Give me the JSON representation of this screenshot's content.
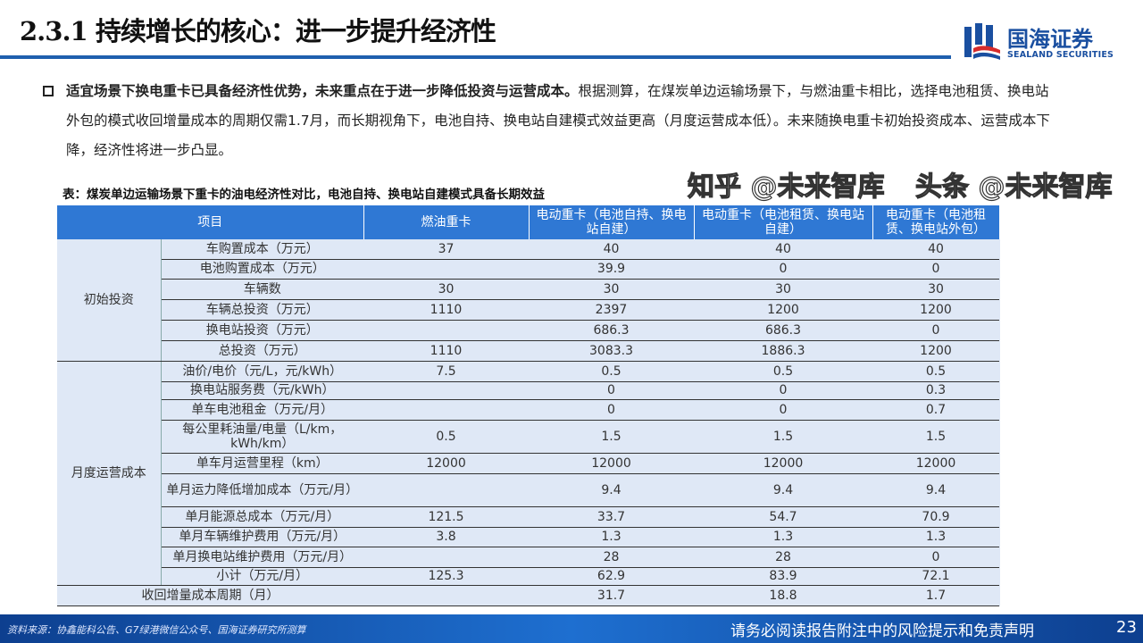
{
  "header": {
    "title": "2.3.1 持续增长的核心：进一步提升经济性",
    "logo_cn": "国海证券",
    "logo_en": "SEALAND SECURITIES"
  },
  "bullet": {
    "bold": "适宜场景下换电重卡已具备经济性优势，未来重点在于进一步降低投资与运营成本。",
    "text": "根据测算，在煤炭单边运输场景下，与燃油重卡相比，选择电池租赁、换电站外包的模式收回增量成本的周期仅需1.7月，而长期视角下，电池自持、换电站自建模式效益更高（月度运营成本低）。未来随换电重卡初始投资成本、运营成本下降，经济性将进一步凸显。"
  },
  "table": {
    "caption": "表：煤炭单边运输场景下重卡的油电经济性对比，电池自持、换电站自建模式具备长期效益",
    "headers": [
      "项目",
      "燃油重卡",
      "电动重卡（电池自持、换电站自建）",
      "电动重卡（电池租赁、换电站自建）",
      "电动重卡（电池租赁、换电站外包）"
    ],
    "groups": [
      {
        "name": "初始投资",
        "rows": [
          {
            "item": "车购置成本（万元）",
            "v": [
              "37",
              "40",
              "40",
              "40"
            ]
          },
          {
            "item": "电池购置成本（万元）",
            "v": [
              "",
              "39.9",
              "0",
              "0"
            ]
          },
          {
            "item": "车辆数",
            "v": [
              "30",
              "30",
              "30",
              "30"
            ]
          },
          {
            "item": "车辆总投资（万元）",
            "v": [
              "1110",
              "2397",
              "1200",
              "1200"
            ]
          },
          {
            "item": "换电站投资（万元）",
            "v": [
              "",
              "686.3",
              "686.3",
              "0"
            ]
          },
          {
            "item": "总投资（万元）",
            "v": [
              "1110",
              "3083.3",
              "1886.3",
              "1200"
            ]
          }
        ]
      },
      {
        "name": "月度运营成本",
        "rows": [
          {
            "item": "油价/电价（元/L，元/kWh）",
            "v": [
              "7.5",
              "0.5",
              "0.5",
              "0.5"
            ]
          },
          {
            "item": "换电站服务费（元/kWh）",
            "v": [
              "",
              "0",
              "0",
              "0.3"
            ]
          },
          {
            "item": "单车电池租金（万元/月）",
            "v": [
              "",
              "0",
              "0",
              "0.7"
            ]
          },
          {
            "item": "每公里耗油量/电量（L/km，kWh/km）",
            "v": [
              "0.5",
              "1.5",
              "1.5",
              "1.5"
            ]
          },
          {
            "item": "单车月运营里程（km）",
            "v": [
              "12000",
              "12000",
              "12000",
              "12000"
            ]
          },
          {
            "item": "单月运力降低增加成本（万元/月）",
            "v": [
              "",
              "9.4",
              "9.4",
              "9.4"
            ]
          },
          {
            "item": "单月能源总成本（万元/月）",
            "v": [
              "121.5",
              "33.7",
              "54.7",
              "70.9"
            ]
          },
          {
            "item": "单月车辆维护费用（万元/月）",
            "v": [
              "3.8",
              "1.3",
              "1.3",
              "1.3"
            ]
          },
          {
            "item": "单月换电站维护费用（万元/月）",
            "v": [
              "",
              "28",
              "28",
              "0"
            ]
          },
          {
            "item": "小计（万元/月）",
            "v": [
              "125.3",
              "62.9",
              "83.9",
              "72.1"
            ]
          }
        ]
      }
    ],
    "payback": {
      "item": "收回增量成本周期（月）",
      "v": [
        "",
        "31.7",
        "18.8",
        "1.7"
      ]
    }
  },
  "footer": {
    "source": "资料来源：协鑫能科公告、G7绿港微信公众号、国海证券研究所测算",
    "disclaimer": "请务必阅读报告附注中的风险提示和免责声明",
    "page": "23"
  },
  "watermarks": [
    "知乎 @未来智库",
    "头条 @未来智库"
  ],
  "colors": {
    "brand": "#1f5fae",
    "header_bg": "#2f78d4",
    "table_bg": "#dfe8f6"
  }
}
